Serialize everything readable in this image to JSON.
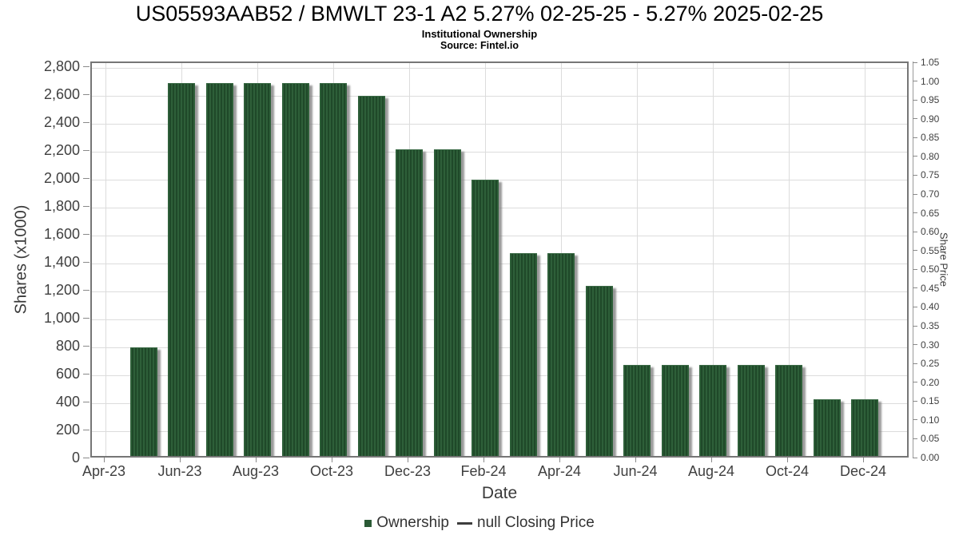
{
  "colors": {
    "bar_green": "#2e5f39",
    "bar_green_dark": "#1f4929",
    "grid": "#dcdcdc",
    "plot_border": "#767676",
    "tick": "#8a8a8a",
    "text": "#3f3f3f",
    "title_text": "#000000",
    "shadow": "#787878"
  },
  "chart_data": {
    "type": "bar",
    "title": "US05593AAB52 / BMWLT 23-1 A2 5.27% 02-25-25 - 5.27% 2025-02-25",
    "subtitle": "Institutional Ownership",
    "source": "Source: Fintel.io",
    "xlabel": "Date",
    "ylabel_left": "Shares (x1000)",
    "ylabel_right": "Share Price",
    "ylim_left": [
      0,
      2800
    ],
    "ylim_right": [
      0,
      1.05
    ],
    "grid": true,
    "legend_position": "bottom",
    "categories": [
      "May-23",
      "Jun-23",
      "Jul-23",
      "Aug-23",
      "Sep-23",
      "Oct-23",
      "Nov-23",
      "Dec-23",
      "Jan-24",
      "Feb-24",
      "Mar-24",
      "Apr-24",
      "May-24",
      "Jun-24",
      "Jul-24",
      "Aug-24",
      "Sep-24",
      "Oct-24",
      "Nov-24",
      "Dec-24"
    ],
    "series": [
      {
        "name": "Ownership",
        "axis": "left",
        "values": [
          800,
          2690,
          2690,
          2690,
          2690,
          2690,
          2600,
          2220,
          2220,
          2000,
          1475,
          1475,
          1240,
          675,
          675,
          675,
          675,
          675,
          430,
          430
        ]
      },
      {
        "name": "null Closing Price",
        "axis": "right",
        "values": []
      }
    ],
    "x_tick_labels": [
      "Apr-23",
      "Jun-23",
      "Aug-23",
      "Oct-23",
      "Dec-23",
      "Feb-24",
      "Apr-24",
      "Jun-24",
      "Aug-24",
      "Oct-24",
      "Dec-24"
    ],
    "left_tick_labels": [
      "0",
      "200",
      "400",
      "600",
      "800",
      "1,000",
      "1,200",
      "1,400",
      "1,600",
      "1,800",
      "2,000",
      "2,200",
      "2,400",
      "2,600",
      "2,800"
    ],
    "left_tick_values": [
      0,
      200,
      400,
      600,
      800,
      1000,
      1200,
      1400,
      1600,
      1800,
      2000,
      2200,
      2400,
      2600,
      2800
    ],
    "right_tick_labels": [
      "0.00",
      "0.05",
      "0.10",
      "0.15",
      "0.20",
      "0.25",
      "0.30",
      "0.35",
      "0.40",
      "0.45",
      "0.50",
      "0.55",
      "0.60",
      "0.65",
      "0.70",
      "0.75",
      "0.80",
      "0.85",
      "0.90",
      "0.95",
      "1.00",
      "1.05"
    ],
    "legend": [
      {
        "label": "Ownership",
        "swatch": "square",
        "color": "#2a5a35"
      },
      {
        "label": "null Closing Price",
        "swatch": "line",
        "color": "#3d3d3d"
      }
    ]
  }
}
